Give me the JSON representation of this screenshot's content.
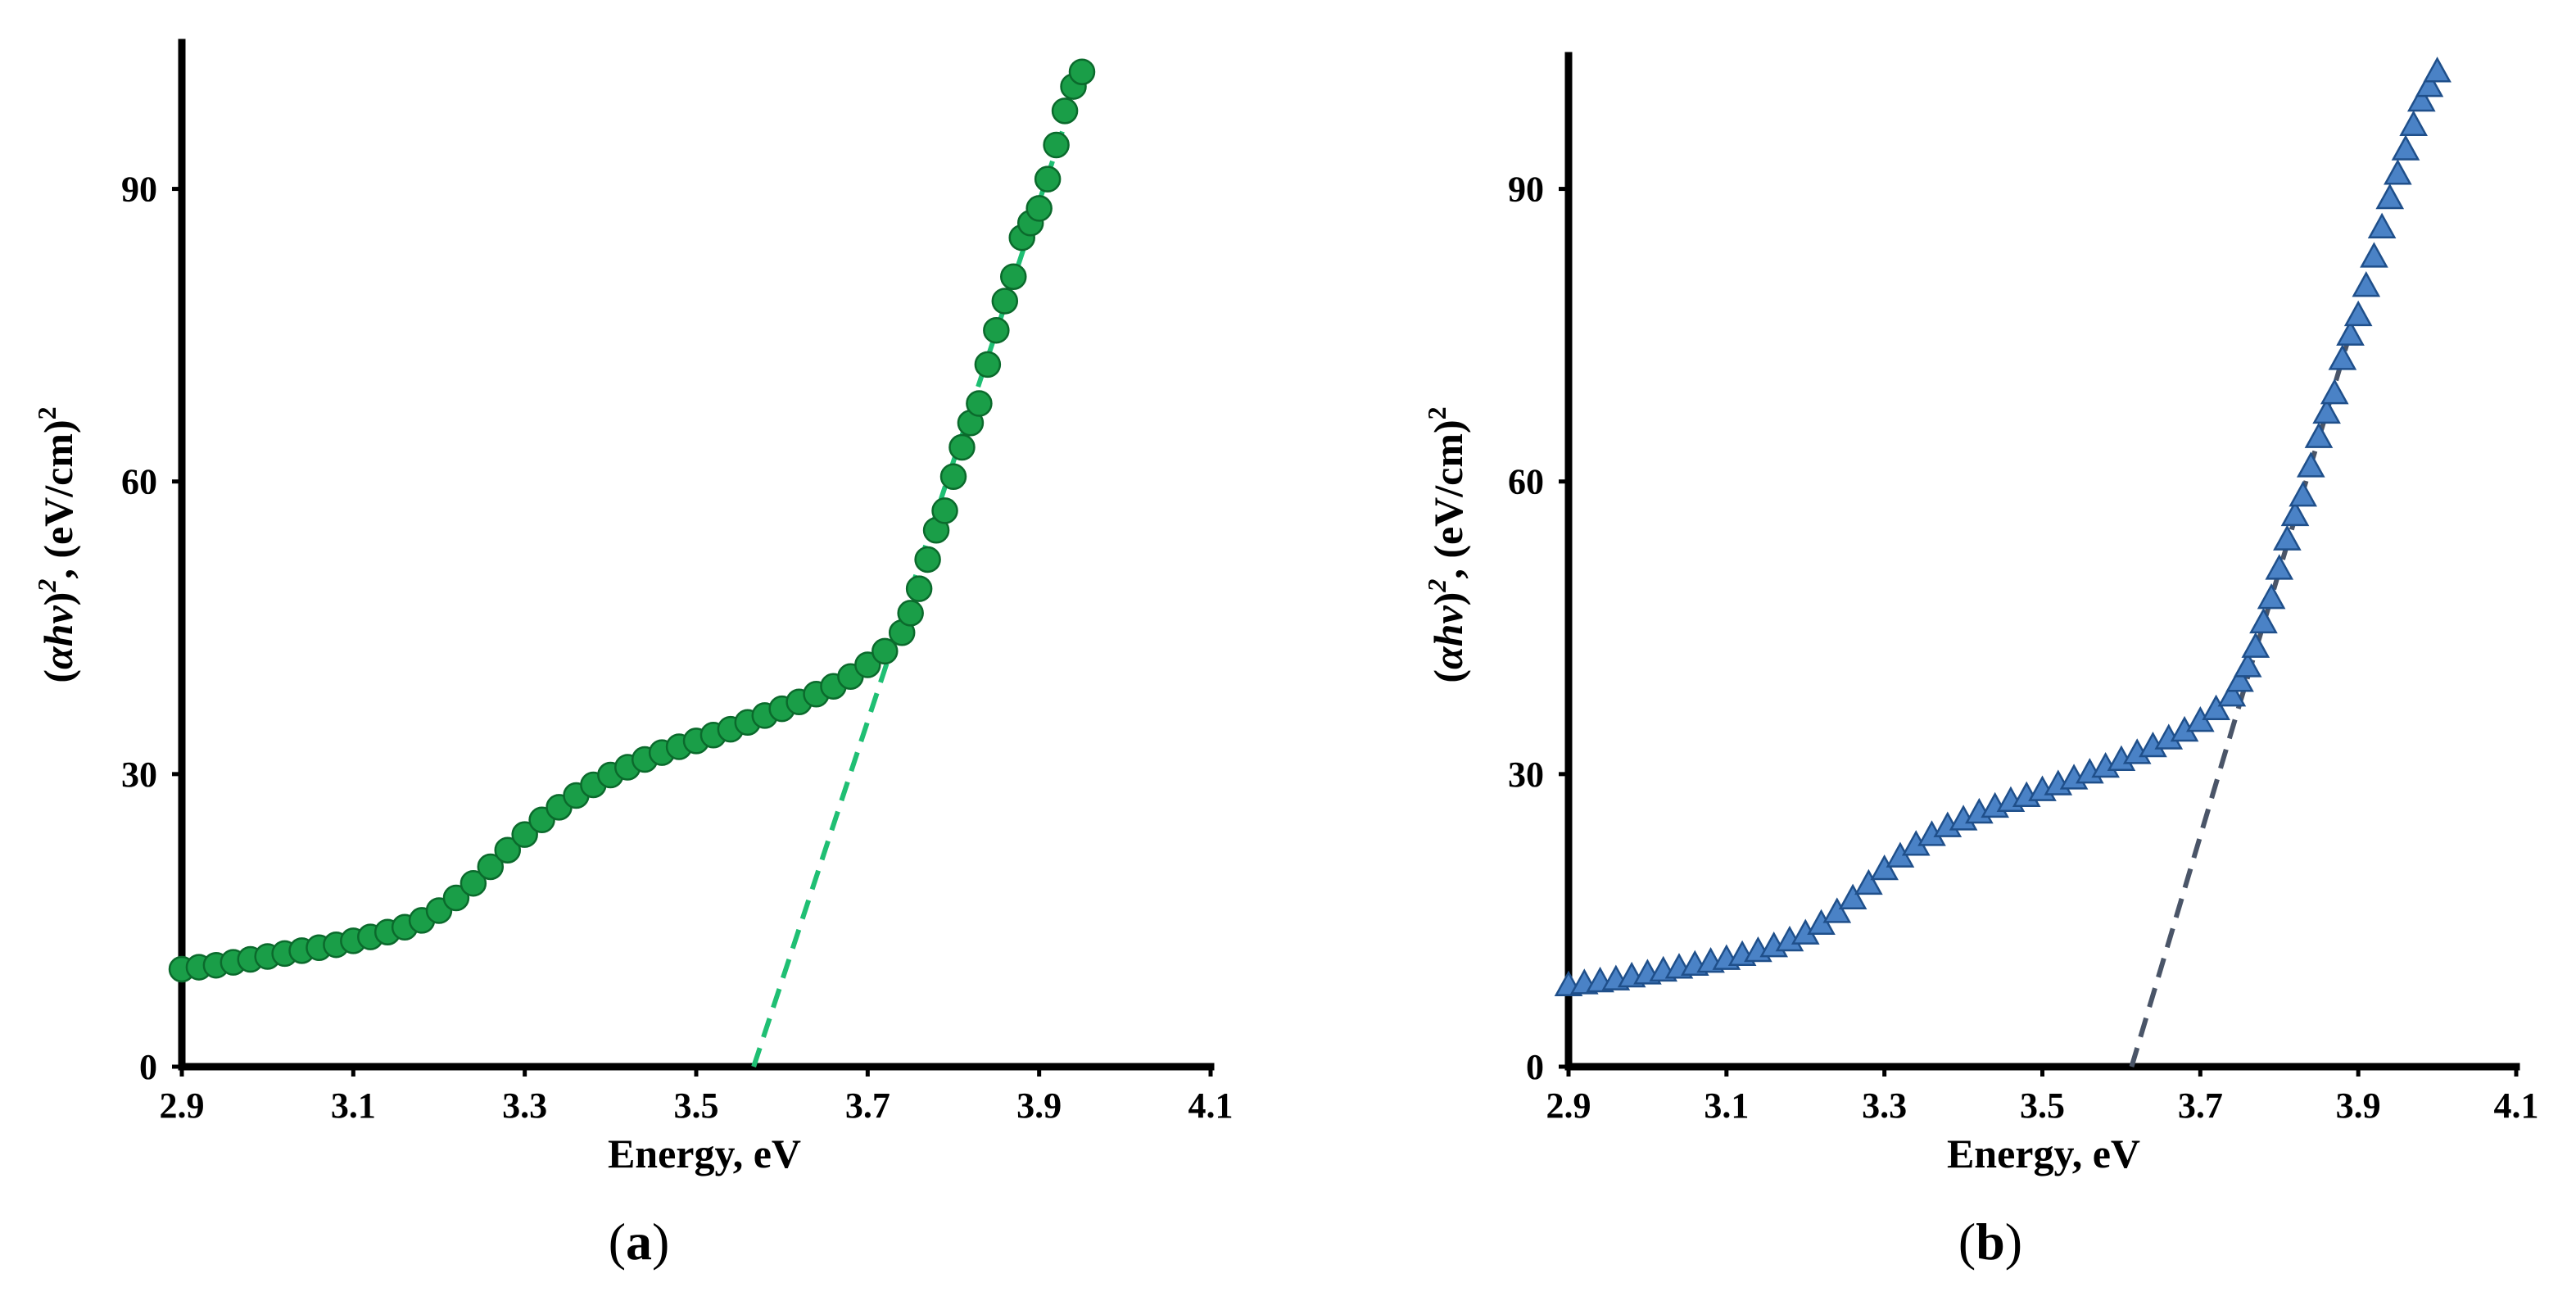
{
  "chart_data": [
    {
      "type": "scatter",
      "panel_label": "(a)",
      "panel_letter": "a",
      "xlabel": "Energy, eV",
      "ylabel": "(αhv)2, (eV/cm)2",
      "ylabel_parts": {
        "open": "(",
        "base": "αhv",
        "close": ")",
        "sup1": "2",
        "mid": ", (eV/cm)",
        "sup2": "2"
      },
      "xlim": [
        2.9,
        4.1
      ],
      "ylim": [
        0,
        105
      ],
      "xticks": [
        "2.9",
        "3.1",
        "3.3",
        "3.5",
        "3.7",
        "3.9",
        "4.1"
      ],
      "yticks": [
        "0",
        "30",
        "60",
        "90"
      ],
      "marker": "circle",
      "marker_color": "#1a9e48",
      "marker_edge": "#0b6a2c",
      "fit_line": {
        "x": [
          3.567,
          3.95
        ],
        "y": [
          0,
          102
        ],
        "color": "#1fbf73",
        "style": "dashed"
      },
      "series": [
        {
          "name": "data",
          "x": [
            2.9,
            2.92,
            2.94,
            2.96,
            2.98,
            3.0,
            3.02,
            3.04,
            3.06,
            3.08,
            3.1,
            3.12,
            3.14,
            3.16,
            3.18,
            3.2,
            3.22,
            3.24,
            3.26,
            3.28,
            3.3,
            3.32,
            3.34,
            3.36,
            3.38,
            3.4,
            3.42,
            3.44,
            3.46,
            3.48,
            3.5,
            3.52,
            3.54,
            3.56,
            3.58,
            3.6,
            3.62,
            3.64,
            3.66,
            3.68,
            3.7,
            3.72,
            3.74,
            3.75,
            3.76,
            3.77,
            3.78,
            3.79,
            3.8,
            3.81,
            3.82,
            3.83,
            3.84,
            3.85,
            3.86,
            3.87,
            3.88,
            3.89,
            3.9,
            3.91,
            3.92,
            3.93,
            3.94,
            3.95
          ],
          "y": [
            10.0,
            10.2,
            10.4,
            10.7,
            11.0,
            11.3,
            11.6,
            11.9,
            12.2,
            12.5,
            12.9,
            13.3,
            13.8,
            14.3,
            15.0,
            16.0,
            17.3,
            18.8,
            20.5,
            22.2,
            23.8,
            25.3,
            26.6,
            27.8,
            28.9,
            29.9,
            30.7,
            31.5,
            32.2,
            32.8,
            33.4,
            34.0,
            34.6,
            35.3,
            36.0,
            36.7,
            37.4,
            38.2,
            39.0,
            40.0,
            41.2,
            42.6,
            44.5,
            46.5,
            49.0,
            52.0,
            55.0,
            57.0,
            60.5,
            63.5,
            66.0,
            68.0,
            72.0,
            75.5,
            78.5,
            81.0,
            85.0,
            86.5,
            88.0,
            91.0,
            94.5,
            98.0,
            100.5,
            102.0
          ]
        }
      ]
    },
    {
      "type": "scatter",
      "panel_label": "(b)",
      "panel_letter": "b",
      "xlabel": "Energy, eV",
      "ylabel": "(αhv)2, (eV/cm)2",
      "ylabel_parts": {
        "open": "(",
        "base": "αhv",
        "close": ")",
        "sup1": "2",
        "mid": ", (eV/cm)",
        "sup2": "2"
      },
      "xlim": [
        2.9,
        4.1
      ],
      "ylim": [
        0,
        105
      ],
      "xticks": [
        "2.9",
        "3.1",
        "3.3",
        "3.5",
        "3.7",
        "3.9",
        "4.1"
      ],
      "yticks": [
        "0",
        "30",
        "60",
        "90"
      ],
      "marker": "triangle",
      "marker_color": "#4a82c6",
      "marker_edge": "#1f4f8a",
      "fit_line": {
        "x": [
          3.613,
          3.9
        ],
        "y": [
          0,
          78
        ],
        "color": "#4a5568",
        "style": "dashed"
      },
      "series": [
        {
          "name": "data",
          "x": [
            2.9,
            2.92,
            2.94,
            2.96,
            2.98,
            3.0,
            3.02,
            3.04,
            3.06,
            3.08,
            3.1,
            3.12,
            3.14,
            3.16,
            3.18,
            3.2,
            3.22,
            3.24,
            3.26,
            3.28,
            3.3,
            3.32,
            3.34,
            3.36,
            3.38,
            3.4,
            3.42,
            3.44,
            3.46,
            3.48,
            3.5,
            3.52,
            3.54,
            3.56,
            3.58,
            3.6,
            3.62,
            3.64,
            3.66,
            3.68,
            3.7,
            3.72,
            3.74,
            3.75,
            3.76,
            3.77,
            3.78,
            3.79,
            3.8,
            3.81,
            3.82,
            3.83,
            3.84,
            3.85,
            3.86,
            3.87,
            3.88,
            3.89,
            3.9,
            3.91,
            3.92,
            3.93,
            3.94,
            3.95,
            3.96,
            3.97,
            3.98,
            3.99,
            4.0
          ],
          "y": [
            8.3,
            8.5,
            8.7,
            8.9,
            9.2,
            9.5,
            9.8,
            10.1,
            10.4,
            10.7,
            11.0,
            11.4,
            11.8,
            12.3,
            12.9,
            13.6,
            14.6,
            15.8,
            17.2,
            18.7,
            20.2,
            21.5,
            22.7,
            23.7,
            24.6,
            25.3,
            26.0,
            26.6,
            27.2,
            27.7,
            28.3,
            28.9,
            29.5,
            30.1,
            30.7,
            31.4,
            32.1,
            32.8,
            33.6,
            34.4,
            35.4,
            36.6,
            38.0,
            39.5,
            41.0,
            43.0,
            45.5,
            48.0,
            51.0,
            54.0,
            56.5,
            58.5,
            61.5,
            64.5,
            67.0,
            69.0,
            72.5,
            75.0,
            77.0,
            80.0,
            83.0,
            86.0,
            89.0,
            91.5,
            94.0,
            96.5,
            99.0,
            100.5,
            102.0
          ]
        }
      ]
    }
  ]
}
